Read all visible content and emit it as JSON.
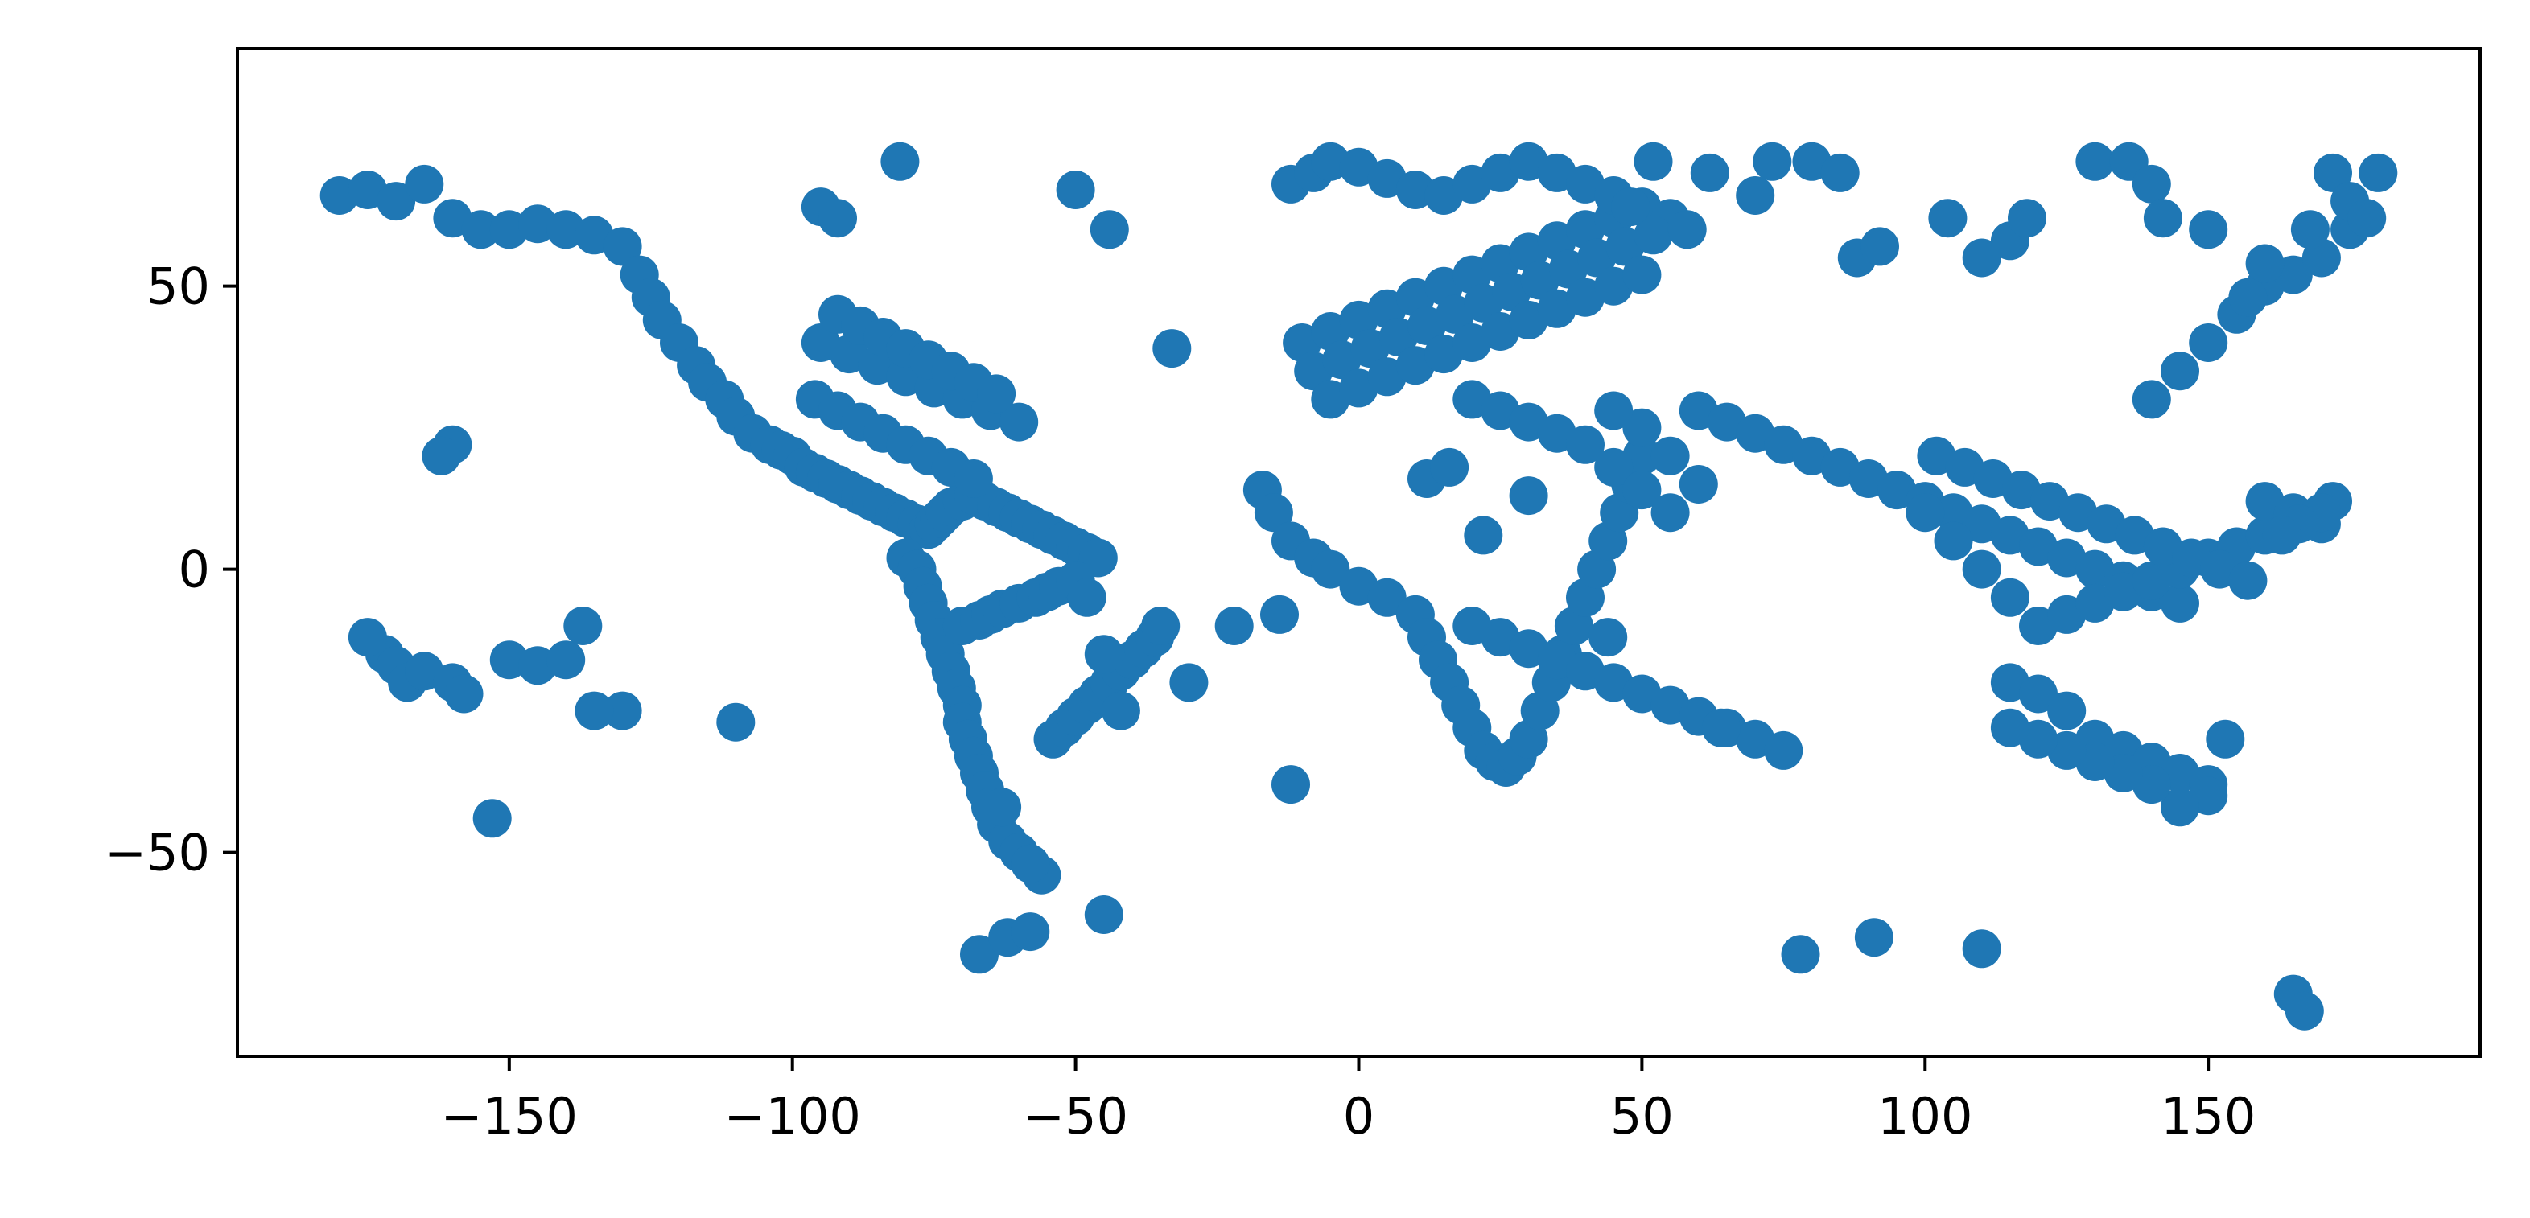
{
  "chart_data": {
    "type": "scatter",
    "title": "",
    "xlabel": "",
    "ylabel": "",
    "xlim": [
      -198,
      198
    ],
    "ylim": [
      -86,
      92
    ],
    "xticks": [
      -150,
      -100,
      -50,
      0,
      50,
      100,
      150
    ],
    "yticks": [
      -50,
      0,
      50
    ],
    "xtick_labels": [
      "−150",
      "−100",
      "−50",
      "0",
      "50",
      "100",
      "150"
    ],
    "ytick_labels": [
      "−50",
      "0",
      "50"
    ],
    "grid": false,
    "legend": "none",
    "marker_color": "#1f77b4",
    "series": [
      {
        "x": [
          -180,
          -175,
          -170,
          -165,
          -160,
          -155,
          -150,
          -145,
          -140,
          -135,
          -130,
          -127,
          -125,
          -123,
          -120,
          -117,
          -115,
          -112,
          -110,
          -107,
          -104,
          -102,
          -100,
          -98,
          -96,
          -94,
          -92,
          -90,
          -88,
          -86,
          -84,
          -82,
          -80,
          -78,
          -76,
          -75,
          -74,
          -73,
          -72,
          -70,
          -68,
          -66,
          -64,
          -62,
          -60,
          -58,
          -56,
          -54,
          -52,
          -50,
          -48,
          -46,
          -95,
          -90,
          -85,
          -80,
          -75,
          -70,
          -65,
          -60,
          -92,
          -88,
          -84,
          -80,
          -76,
          -72,
          -68,
          -64,
          -96,
          -92,
          -88,
          -84,
          -80,
          -76,
          -72,
          -68,
          -80,
          -78,
          -77,
          -76,
          -75,
          -74,
          -73,
          -72,
          -71,
          -70,
          -70,
          -69,
          -68,
          -67,
          -66,
          -65,
          -64,
          -62,
          -60,
          -58,
          -56,
          -54,
          -52,
          -50,
          -48,
          -46,
          -44,
          -42,
          -40,
          -38,
          -36,
          -35,
          -70,
          -67,
          -65,
          -63,
          -60,
          -57,
          -55,
          -53,
          -50,
          -48,
          -45,
          -42,
          -172,
          -170,
          -168,
          -175,
          -165,
          -160,
          -158,
          -150,
          -145,
          -140,
          -130,
          -110,
          -160,
          -162,
          -153,
          -137,
          -81,
          -95,
          -92,
          -50,
          -44,
          -67,
          -62,
          -58,
          -45,
          -58,
          -63,
          -10,
          -5,
          0,
          5,
          10,
          15,
          20,
          25,
          30,
          35,
          40,
          45,
          50,
          55,
          -8,
          -3,
          2,
          7,
          12,
          17,
          22,
          27,
          32,
          37,
          42,
          47,
          52,
          -5,
          0,
          5,
          10,
          15,
          20,
          25,
          30,
          35,
          40,
          45,
          50,
          -17,
          -15,
          -12,
          -8,
          -5,
          0,
          5,
          10,
          12,
          14,
          16,
          18,
          20,
          22,
          24,
          26,
          28,
          30,
          32,
          34,
          36,
          38,
          40,
          42,
          44,
          46,
          48,
          50,
          -12,
          -8,
          -5,
          0,
          5,
          10,
          15,
          20,
          25,
          30,
          35,
          40,
          45,
          48,
          20,
          25,
          30,
          35,
          40,
          45,
          50,
          55,
          60,
          55,
          50,
          45,
          60,
          65,
          70,
          75,
          80,
          85,
          90,
          95,
          100,
          105,
          110,
          115,
          120,
          125,
          130,
          135,
          140,
          145,
          100,
          105,
          110,
          115,
          120,
          125,
          130,
          135,
          140,
          145,
          150,
          155,
          160,
          102,
          107,
          112,
          117,
          122,
          127,
          132,
          137,
          142,
          147,
          152,
          157,
          115,
          120,
          125,
          130,
          135,
          140,
          145,
          150,
          153,
          150,
          145,
          140,
          135,
          130,
          125,
          120,
          115,
          140,
          145,
          150,
          155,
          160,
          165,
          170,
          175,
          160,
          165,
          170,
          20,
          25,
          30,
          35,
          40,
          45,
          50,
          55,
          60,
          65,
          70,
          75,
          12,
          16,
          22,
          30,
          44,
          64,
          78,
          91,
          110,
          165,
          167,
          -135,
          -12,
          -30,
          -33,
          -22,
          -14,
          52,
          58,
          62,
          70,
          73,
          80,
          85,
          88,
          92,
          104,
          110,
          115,
          118,
          130,
          136,
          140,
          142,
          150,
          160,
          168,
          172,
          175,
          180,
          178,
          172,
          170,
          166,
          163,
          157
        ],
        "y": [
          66,
          67,
          65,
          68,
          62,
          60,
          60,
          61,
          60,
          59,
          57,
          52,
          48,
          44,
          40,
          36,
          33,
          30,
          27,
          24,
          22,
          21,
          20,
          18,
          17,
          16,
          15,
          14,
          13,
          12,
          11,
          10,
          9,
          8,
          7,
          8,
          9,
          10,
          11,
          12,
          13,
          12,
          11,
          10,
          9,
          8,
          7,
          6,
          5,
          4,
          3,
          2,
          40,
          38,
          36,
          34,
          32,
          30,
          28,
          26,
          45,
          43,
          41,
          39,
          37,
          35,
          33,
          31,
          30,
          28,
          26,
          24,
          22,
          20,
          18,
          16,
          2,
          0,
          -3,
          -6,
          -9,
          -12,
          -15,
          -18,
          -21,
          -24,
          -27,
          -30,
          -33,
          -36,
          -39,
          -42,
          -45,
          -48,
          -50,
          -52,
          -54,
          -30,
          -28,
          -26,
          -24,
          -22,
          -20,
          -18,
          -16,
          -14,
          -12,
          -10,
          -10,
          -9,
          -8,
          -7,
          -6,
          -5,
          -4,
          -3,
          -2,
          -5,
          -15,
          -25,
          -15,
          -17,
          -20,
          -12,
          -18,
          -20,
          -22,
          -16,
          -17,
          -16,
          -25,
          -27,
          22,
          20,
          -44,
          -10,
          72,
          64,
          62,
          67,
          60,
          -68,
          -65,
          -64,
          -61,
          -52,
          -42,
          40,
          42,
          44,
          46,
          48,
          50,
          52,
          54,
          56,
          58,
          60,
          62,
          64,
          62,
          35,
          37,
          39,
          41,
          43,
          45,
          47,
          49,
          51,
          53,
          55,
          57,
          59,
          30,
          32,
          34,
          36,
          38,
          40,
          42,
          44,
          46,
          48,
          50,
          52,
          14,
          10,
          5,
          2,
          0,
          -3,
          -5,
          -8,
          -12,
          -16,
          -20,
          -24,
          -28,
          -32,
          -34,
          -35,
          -33,
          -30,
          -25,
          -20,
          -15,
          -10,
          -5,
          0,
          5,
          10,
          15,
          20,
          68,
          70,
          72,
          71,
          69,
          67,
          66,
          68,
          70,
          72,
          70,
          68,
          66,
          64,
          30,
          28,
          26,
          24,
          22,
          18,
          14,
          10,
          15,
          20,
          25,
          28,
          28,
          26,
          24,
          22,
          20,
          18,
          16,
          14,
          12,
          10,
          8,
          6,
          4,
          2,
          0,
          -2,
          -4,
          -6,
          10,
          5,
          0,
          -5,
          -10,
          -8,
          -6,
          -4,
          -2,
          0,
          2,
          4,
          6,
          20,
          18,
          16,
          14,
          12,
          10,
          8,
          6,
          4,
          2,
          0,
          -2,
          -20,
          -22,
          -25,
          -30,
          -32,
          -34,
          -36,
          -38,
          -30,
          -40,
          -42,
          -38,
          -36,
          -34,
          -32,
          -30,
          -28,
          30,
          35,
          40,
          45,
          50,
          52,
          55,
          60,
          12,
          10,
          8,
          -10,
          -12,
          -14,
          -16,
          -18,
          -20,
          -22,
          -24,
          -26,
          -28,
          -30,
          -32,
          16,
          18,
          6,
          13,
          -12,
          -28,
          -68,
          -65,
          -67,
          -75,
          -78,
          -25,
          -38,
          -20,
          39,
          -10,
          -8,
          72,
          60,
          70,
          66,
          72,
          72,
          70,
          55,
          57,
          62,
          55,
          58,
          62,
          72,
          72,
          68,
          62,
          60,
          54,
          60,
          70,
          65,
          70,
          62,
          12,
          10,
          8,
          6,
          48
        ]
      }
    ]
  }
}
